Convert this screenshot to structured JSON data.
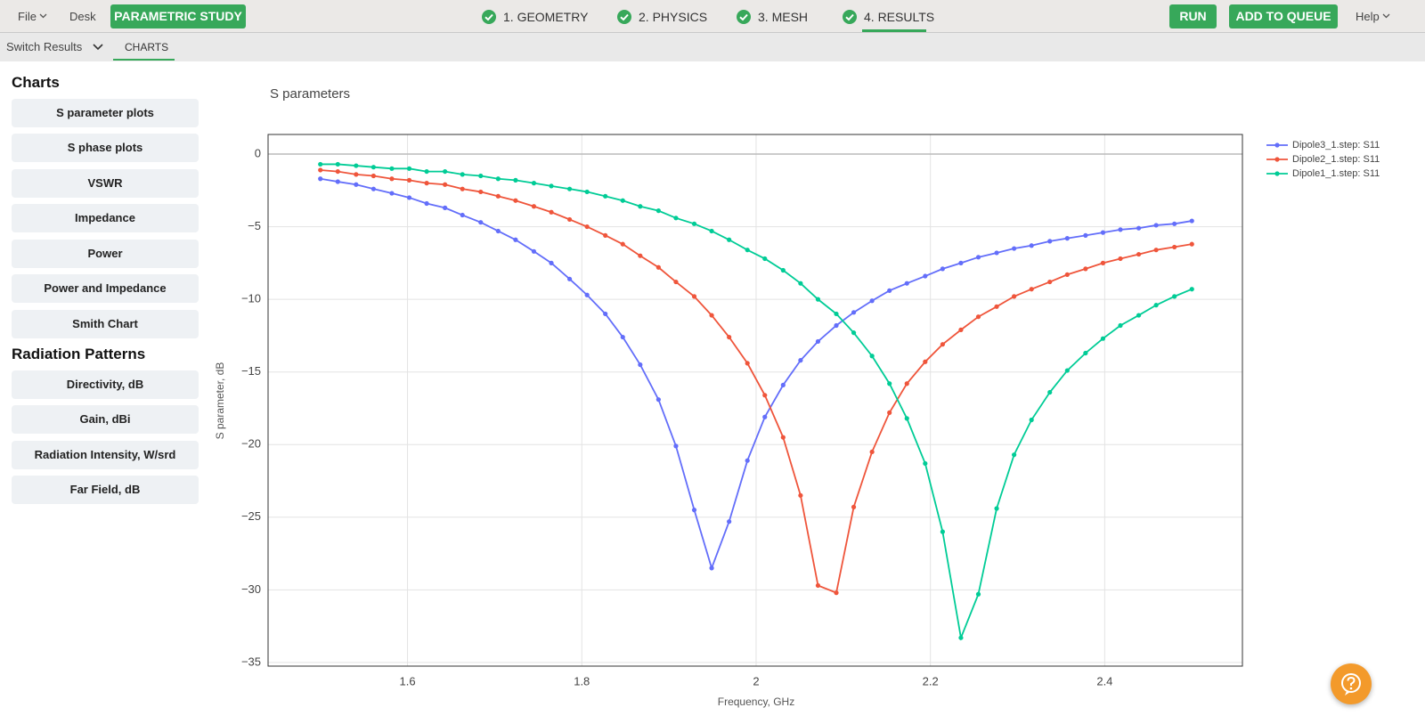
{
  "header": {
    "file": "File",
    "desk": "Desk",
    "study": "PARAMETRIC STUDY",
    "steps": [
      "1. GEOMETRY",
      "2. PHYSICS",
      "3. MESH",
      "4. RESULTS"
    ],
    "run": "RUN",
    "queue": "ADD TO QUEUE",
    "help": "Help"
  },
  "subheader": {
    "switch": "Switch Results",
    "tab": "CHARTS"
  },
  "sidebar": {
    "charts_heading": "Charts",
    "chart_items": [
      "S parameter plots",
      "S phase plots",
      "VSWR",
      "Impedance",
      "Power",
      "Power and Impedance",
      "Smith Chart"
    ],
    "radiation_heading": "Radiation Patterns",
    "radiation_items": [
      "Directivity, dB",
      "Gain, dBi",
      "Radiation Intensity, W/srd",
      "Far Field, dB"
    ]
  },
  "chart_data": {
    "type": "line",
    "title": "S parameters",
    "x_label": "Frequency, GHz",
    "y_label": "S parameter, dB",
    "x": [
      1.5,
      1.52,
      1.541,
      1.561,
      1.582,
      1.602,
      1.622,
      1.643,
      1.663,
      1.684,
      1.704,
      1.724,
      1.745,
      1.765,
      1.786,
      1.806,
      1.827,
      1.847,
      1.867,
      1.888,
      1.908,
      1.929,
      1.949,
      1.969,
      1.99,
      2.01,
      2.031,
      2.051,
      2.071,
      2.092,
      2.112,
      2.133,
      2.153,
      2.173,
      2.194,
      2.214,
      2.235,
      2.255,
      2.276,
      2.296,
      2.316,
      2.337,
      2.357,
      2.378,
      2.398,
      2.418,
      2.439,
      2.459,
      2.48,
      2.5
    ],
    "series": [
      {
        "name": "Dipole3_1.step: S11",
        "color": "#636efa",
        "values": [
          -1.7,
          -1.9,
          -2.1,
          -2.4,
          -2.7,
          -3.0,
          -3.4,
          -3.7,
          -4.2,
          -4.7,
          -5.3,
          -5.9,
          -6.7,
          -7.5,
          -8.6,
          -9.7,
          -11.0,
          -12.6,
          -14.5,
          -16.9,
          -20.1,
          -24.5,
          -28.5,
          -25.3,
          -21.1,
          -18.1,
          -15.9,
          -14.2,
          -12.9,
          -11.8,
          -10.9,
          -10.1,
          -9.4,
          -8.9,
          -8.4,
          -7.9,
          -7.5,
          -7.1,
          -6.8,
          -6.5,
          -6.3,
          -6.0,
          -5.8,
          -5.6,
          -5.4,
          -5.2,
          -5.1,
          -4.9,
          -4.8,
          -4.6
        ]
      },
      {
        "name": "Dipole2_1.step: S11",
        "color": "#ef553b",
        "values": [
          -1.1,
          -1.2,
          -1.4,
          -1.5,
          -1.7,
          -1.8,
          -2.0,
          -2.1,
          -2.4,
          -2.6,
          -2.9,
          -3.2,
          -3.6,
          -4.0,
          -4.5,
          -5.0,
          -5.6,
          -6.2,
          -7.0,
          -7.8,
          -8.8,
          -9.8,
          -11.1,
          -12.6,
          -14.4,
          -16.6,
          -19.5,
          -23.5,
          -29.7,
          -30.2,
          -24.3,
          -20.5,
          -17.8,
          -15.8,
          -14.3,
          -13.1,
          -12.1,
          -11.2,
          -10.5,
          -9.8,
          -9.3,
          -8.8,
          -8.3,
          -7.9,
          -7.5,
          -7.2,
          -6.9,
          -6.6,
          -6.4,
          -6.2
        ]
      },
      {
        "name": "Dipole1_1.step: S11",
        "color": "#00cc96",
        "values": [
          -0.7,
          -0.7,
          -0.8,
          -0.9,
          -1.0,
          -1.0,
          -1.2,
          -1.2,
          -1.4,
          -1.5,
          -1.7,
          -1.8,
          -2.0,
          -2.2,
          -2.4,
          -2.6,
          -2.9,
          -3.2,
          -3.6,
          -3.9,
          -4.4,
          -4.8,
          -5.3,
          -5.9,
          -6.6,
          -7.2,
          -8.0,
          -8.9,
          -10.0,
          -11.0,
          -12.3,
          -13.9,
          -15.8,
          -18.2,
          -21.3,
          -26.0,
          -33.3,
          -30.3,
          -24.4,
          -20.7,
          -18.3,
          -16.4,
          -14.9,
          -13.7,
          -12.7,
          -11.8,
          -11.1,
          -10.4,
          -9.8,
          -9.3
        ]
      }
    ],
    "xlim": [
      1.44,
      2.558
    ],
    "ylim": [
      -35.25,
      1.35
    ],
    "xticks": [
      1.6,
      1.8,
      2,
      2.2,
      2.4
    ],
    "yticks": [
      0,
      {
        "value": -5,
        "label": "−5"
      },
      {
        "value": -10,
        "label": "−10"
      },
      {
        "value": -15,
        "label": "−15"
      },
      {
        "value": -20,
        "label": "−20"
      },
      {
        "value": -25,
        "label": "−25"
      },
      {
        "value": -30,
        "label": "−30"
      },
      {
        "value": -35,
        "label": "−35"
      }
    ],
    "grid": true,
    "legend": "top-right"
  }
}
